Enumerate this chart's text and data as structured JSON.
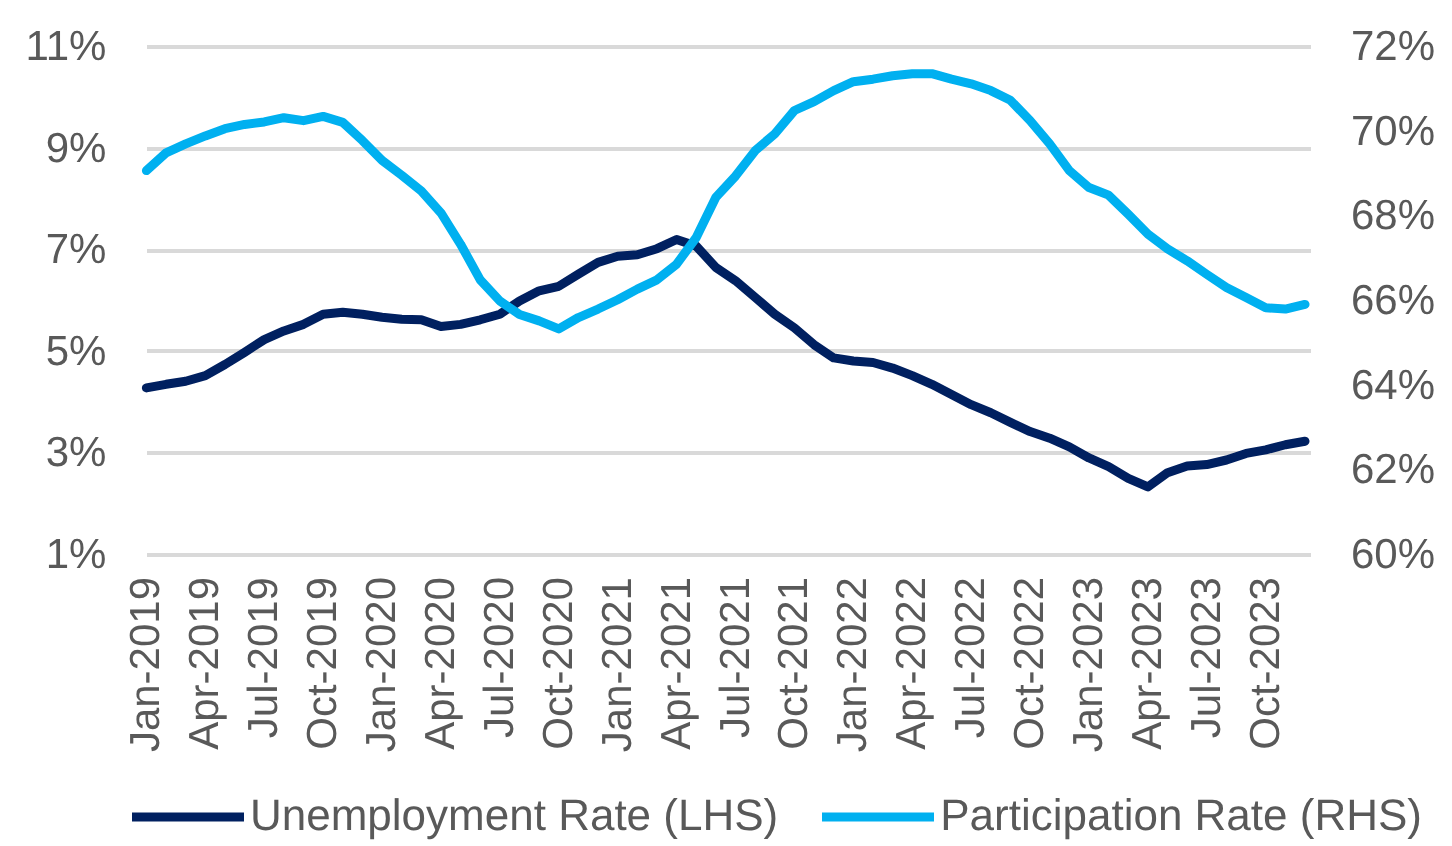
{
  "chart_data": {
    "type": "line",
    "categories": [
      "Jan-2019",
      null,
      null,
      "Apr-2019",
      null,
      null,
      "Jul-2019",
      null,
      null,
      "Oct-2019",
      null,
      null,
      "Jan-2020",
      null,
      null,
      "Apr-2020",
      null,
      null,
      "Jul-2020",
      null,
      null,
      "Oct-2020",
      null,
      null,
      "Jan-2021",
      null,
      null,
      "Apr-2021",
      null,
      null,
      "Jul-2021",
      null,
      null,
      "Oct-2021",
      null,
      null,
      "Jan-2022",
      null,
      null,
      "Apr-2022",
      null,
      null,
      "Jul-2022",
      null,
      null,
      "Oct-2022",
      null,
      null,
      "Jan-2023",
      null,
      null,
      "Apr-2023",
      null,
      null,
      "Jul-2023",
      null,
      null,
      "Oct-2023",
      null,
      null
    ],
    "series": [
      {
        "name": "Unemployment Rate (LHS)",
        "color": "#002060",
        "values": [
          4.29,
          4.36,
          4.42,
          4.53,
          4.75,
          4.99,
          5.24,
          5.41,
          5.54,
          5.74,
          5.78,
          5.74,
          5.68,
          5.64,
          5.63,
          5.5,
          5.54,
          5.63,
          5.74,
          6.0,
          6.2,
          6.29,
          6.53,
          6.76,
          6.88,
          6.91,
          7.03,
          7.21,
          7.08,
          6.66,
          6.4,
          6.07,
          5.74,
          5.47,
          5.14,
          4.88,
          4.82,
          4.79,
          4.68,
          4.53,
          4.36,
          4.16,
          3.96,
          3.8,
          3.61,
          3.43,
          3.3,
          3.13,
          2.91,
          2.74,
          2.51,
          2.34,
          2.62,
          2.75,
          2.78,
          2.87,
          3.0,
          3.07,
          3.17,
          3.24
        ]
      },
      {
        "name": "Participation Rate (RHS)",
        "color": "#00b0f0",
        "axis": "y2",
        "values": [
          69.08,
          69.5,
          69.71,
          69.9,
          70.07,
          70.17,
          70.23,
          70.33,
          70.26,
          70.36,
          70.22,
          69.79,
          69.32,
          68.97,
          68.6,
          68.08,
          67.34,
          66.5,
          66.0,
          65.68,
          65.53,
          65.34,
          65.61,
          65.81,
          66.03,
          66.28,
          66.5,
          66.87,
          67.5,
          68.45,
          68.95,
          69.55,
          69.95,
          70.5,
          70.71,
          70.97,
          71.18,
          71.24,
          71.32,
          71.37,
          71.37,
          71.24,
          71.13,
          70.97,
          70.74,
          70.26,
          69.71,
          69.08,
          68.68,
          68.5,
          68.05,
          67.58,
          67.23,
          66.95,
          66.63,
          66.32,
          66.08,
          65.84,
          65.81,
          65.92
        ]
      }
    ],
    "ylim": [
      1,
      11
    ],
    "yticks": [
      {
        "value": 1,
        "label": "1%"
      },
      {
        "value": 3,
        "label": "3%"
      },
      {
        "value": 5,
        "label": "5%"
      },
      {
        "value": 7,
        "label": "7%"
      },
      {
        "value": 9,
        "label": "9%"
      },
      {
        "value": 11,
        "label": "11%"
      }
    ],
    "y2lim": [
      60,
      72
    ],
    "y2ticks": [
      {
        "value": 60,
        "label": "60%"
      },
      {
        "value": 62,
        "label": "62%"
      },
      {
        "value": 64,
        "label": "64%"
      },
      {
        "value": 66,
        "label": "66%"
      },
      {
        "value": 68,
        "label": "68%"
      },
      {
        "value": 70,
        "label": "70%"
      },
      {
        "value": 72,
        "label": "72%"
      }
    ],
    "grid": "y",
    "legend": "bottom"
  }
}
